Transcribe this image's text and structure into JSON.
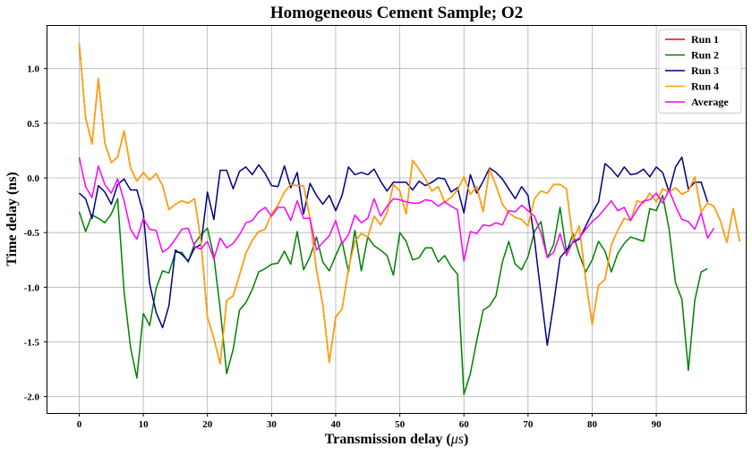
{
  "chart_data": {
    "type": "line",
    "title": "Homogeneous Cement Sample; O2",
    "xlabel_main": "Transmission delay (",
    "xlabel_unit": "μs",
    "xlabel_end": ")",
    "ylabel": "Time delay (ns)",
    "xlim": [
      -4.95,
      103.95
    ],
    "ylim": [
      -2.15,
      1.39
    ],
    "xticks": [
      0,
      10,
      20,
      30,
      40,
      50,
      60,
      70,
      80,
      90
    ],
    "yticks": [
      -2.0,
      -1.5,
      -1.0,
      -0.5,
      0.0,
      0.5,
      1.0
    ],
    "ytick_labels": [
      "-2.0",
      "-1.5",
      "-1.0",
      "-0.5",
      "0.0",
      "0.5",
      "1.0"
    ],
    "grid": true,
    "legend_position": "top-right",
    "series": [
      {
        "name": "Run 1",
        "color": "#ff0000",
        "values": [
          1.23,
          0.55,
          0.31,
          0.91,
          0.32,
          0.14,
          0.19,
          0.43,
          0.09,
          -0.03,
          0.05,
          -0.02,
          0.04,
          -0.07,
          -0.29,
          -0.24,
          -0.21,
          -0.23,
          -0.19,
          -0.58,
          -1.27,
          -1.47,
          -1.7,
          -1.12,
          -1.08,
          -0.89,
          -0.69,
          -0.57,
          -0.49,
          -0.47,
          -0.33,
          -0.25,
          -0.13,
          -0.06,
          -0.07,
          -0.07,
          -0.37,
          -0.84,
          -1.16,
          -1.69,
          -1.27,
          -1.2,
          -0.83,
          -0.58,
          -0.51,
          -0.54,
          -0.35,
          -0.43,
          -0.32,
          -0.06,
          -0.12,
          -0.33,
          0.16,
          0.08,
          -0.01,
          -0.12,
          -0.08,
          -0.22,
          -0.18,
          -0.11,
          0.01,
          -0.15,
          -0.08,
          -0.31,
          0.08,
          -0.07,
          -0.24,
          -0.32,
          -0.36,
          -0.38,
          -0.44,
          -0.19,
          -0.12,
          -0.14,
          -0.06,
          -0.06,
          -0.1,
          -0.57,
          -0.44,
          -0.94,
          -1.34,
          -0.98,
          -0.93,
          -0.61,
          -0.48,
          -0.37,
          -0.39,
          -0.21,
          -0.23,
          -0.14,
          -0.22,
          -0.1,
          -0.13,
          -0.09,
          -0.15,
          -0.12,
          0.01,
          -0.31,
          -0.23,
          -0.26,
          -0.39,
          -0.59,
          -0.28,
          -0.58
        ]
      },
      {
        "name": "Run 2",
        "color": "#008000",
        "values": [
          -0.31,
          -0.49,
          -0.34,
          -0.37,
          -0.41,
          -0.33,
          -0.19,
          -1.04,
          -1.55,
          -1.83,
          -1.24,
          -1.35,
          -1.01,
          -0.85,
          -0.87,
          -0.68,
          -0.68,
          -0.77,
          -0.6,
          -0.52,
          -0.46,
          -0.72,
          -1.2,
          -1.79,
          -1.57,
          -1.21,
          -1.14,
          -1.02,
          -0.86,
          -0.83,
          -0.79,
          -0.78,
          -0.67,
          -0.79,
          -0.49,
          -0.84,
          -0.72,
          -0.54,
          -0.77,
          -0.85,
          -0.71,
          -0.58,
          -0.86,
          -0.48,
          -0.85,
          -0.54,
          -0.62,
          -0.66,
          -0.71,
          -0.89,
          -0.5,
          -0.58,
          -0.75,
          -0.73,
          -0.64,
          -0.64,
          -0.77,
          -0.71,
          -0.81,
          -0.88,
          -1.98,
          -1.79,
          -1.49,
          -1.21,
          -1.17,
          -1.08,
          -0.77,
          -0.58,
          -0.79,
          -0.84,
          -0.72,
          -0.49,
          -0.4,
          -0.73,
          -0.61,
          -0.27,
          -0.68,
          -0.51,
          -0.7,
          -0.86,
          -0.75,
          -0.58,
          -0.67,
          -0.86,
          -0.69,
          -0.6,
          -0.54,
          -0.56,
          -0.58,
          -0.28,
          -0.3,
          -0.16,
          -0.47,
          -0.96,
          -1.11,
          -1.76,
          -1.12,
          -0.86,
          -0.83
        ]
      },
      {
        "name": "Run 3",
        "color": "#000080",
        "values": [
          -0.14,
          -0.19,
          -0.37,
          -0.07,
          -0.13,
          -0.24,
          -0.06,
          -0.01,
          -0.11,
          -0.11,
          -0.32,
          -0.97,
          -1.23,
          -1.37,
          -1.17,
          -0.66,
          -0.7,
          -0.76,
          -0.64,
          -0.61,
          -0.13,
          -0.38,
          0.07,
          0.07,
          -0.1,
          0.06,
          0.1,
          0.03,
          0.12,
          0.04,
          -0.07,
          -0.08,
          0.11,
          -0.09,
          0.05,
          -0.33,
          -0.05,
          -0.16,
          -0.24,
          -0.16,
          -0.3,
          -0.16,
          0.1,
          0.03,
          0.05,
          0.03,
          0.08,
          -0.03,
          -0.12,
          -0.04,
          -0.04,
          -0.04,
          -0.11,
          -0.03,
          -0.07,
          -0.04,
          0.0,
          -0.01,
          -0.13,
          -0.09,
          -0.32,
          0.03,
          -0.14,
          -0.03,
          0.09,
          0.05,
          -0.01,
          -0.1,
          -0.19,
          -0.08,
          -0.16,
          -0.56,
          -1.06,
          -1.53,
          -1.15,
          -0.73,
          -0.66,
          -0.59,
          -0.56,
          -0.44,
          -0.32,
          -0.22,
          0.13,
          0.08,
          0.01,
          0.1,
          0.03,
          0.04,
          0.08,
          0.01,
          0.1,
          0.05,
          -0.13,
          0.1,
          0.19,
          -0.1,
          -0.04,
          -0.04,
          -0.22
        ]
      },
      {
        "name": "Run 4",
        "color": "#ffa500",
        "values": [
          1.23,
          0.55,
          0.31,
          0.91,
          0.32,
          0.14,
          0.19,
          0.43,
          0.09,
          -0.03,
          0.05,
          -0.02,
          0.04,
          -0.07,
          -0.29,
          -0.24,
          -0.21,
          -0.23,
          -0.19,
          -0.58,
          -1.27,
          -1.47,
          -1.7,
          -1.12,
          -1.08,
          -0.89,
          -0.69,
          -0.57,
          -0.49,
          -0.47,
          -0.33,
          -0.25,
          -0.13,
          -0.06,
          -0.07,
          -0.07,
          -0.37,
          -0.84,
          -1.16,
          -1.69,
          -1.27,
          -1.2,
          -0.83,
          -0.58,
          -0.51,
          -0.54,
          -0.35,
          -0.43,
          -0.32,
          -0.06,
          -0.12,
          -0.33,
          0.16,
          0.08,
          -0.01,
          -0.12,
          -0.08,
          -0.22,
          -0.18,
          -0.11,
          0.01,
          -0.15,
          -0.08,
          -0.31,
          0.08,
          -0.07,
          -0.24,
          -0.32,
          -0.36,
          -0.38,
          -0.44,
          -0.19,
          -0.12,
          -0.14,
          -0.06,
          -0.06,
          -0.1,
          -0.57,
          -0.44,
          -0.94,
          -1.34,
          -0.98,
          -0.93,
          -0.61,
          -0.48,
          -0.37,
          -0.39,
          -0.21,
          -0.23,
          -0.14,
          -0.22,
          -0.1,
          -0.13,
          -0.09,
          -0.15,
          -0.12,
          0.01,
          -0.31,
          -0.23,
          -0.26,
          -0.39,
          -0.59,
          -0.28,
          -0.58
        ]
      },
      {
        "name": "Average",
        "color": "#ff00ff",
        "values": [
          0.19,
          -0.08,
          -0.18,
          0.11,
          -0.06,
          -0.14,
          -0.01,
          -0.21,
          -0.47,
          -0.56,
          -0.37,
          -0.47,
          -0.48,
          -0.68,
          -0.64,
          -0.56,
          -0.47,
          -0.46,
          -0.63,
          -0.65,
          -0.58,
          -0.74,
          -0.55,
          -0.64,
          -0.6,
          -0.52,
          -0.41,
          -0.39,
          -0.31,
          -0.27,
          -0.35,
          -0.27,
          -0.27,
          -0.39,
          -0.21,
          -0.37,
          -0.37,
          -0.66,
          -0.59,
          -0.53,
          -0.39,
          -0.6,
          -0.52,
          -0.34,
          -0.41,
          -0.37,
          -0.19,
          -0.35,
          -0.26,
          -0.19,
          -0.2,
          -0.22,
          -0.23,
          -0.23,
          -0.2,
          -0.21,
          -0.26,
          -0.22,
          -0.26,
          -0.29,
          -0.76,
          -0.49,
          -0.51,
          -0.43,
          -0.44,
          -0.41,
          -0.43,
          -0.3,
          -0.31,
          -0.25,
          -0.3,
          -0.35,
          -0.5,
          -0.73,
          -0.68,
          -0.51,
          -0.71,
          -0.58,
          -0.55,
          -0.47,
          -0.4,
          -0.35,
          -0.28,
          -0.21,
          -0.3,
          -0.27,
          -0.39,
          -0.29,
          -0.21,
          -0.2,
          -0.14,
          -0.23,
          -0.11,
          -0.26,
          -0.38,
          -0.4,
          -0.47,
          -0.32,
          -0.55,
          -0.46
        ]
      }
    ]
  }
}
